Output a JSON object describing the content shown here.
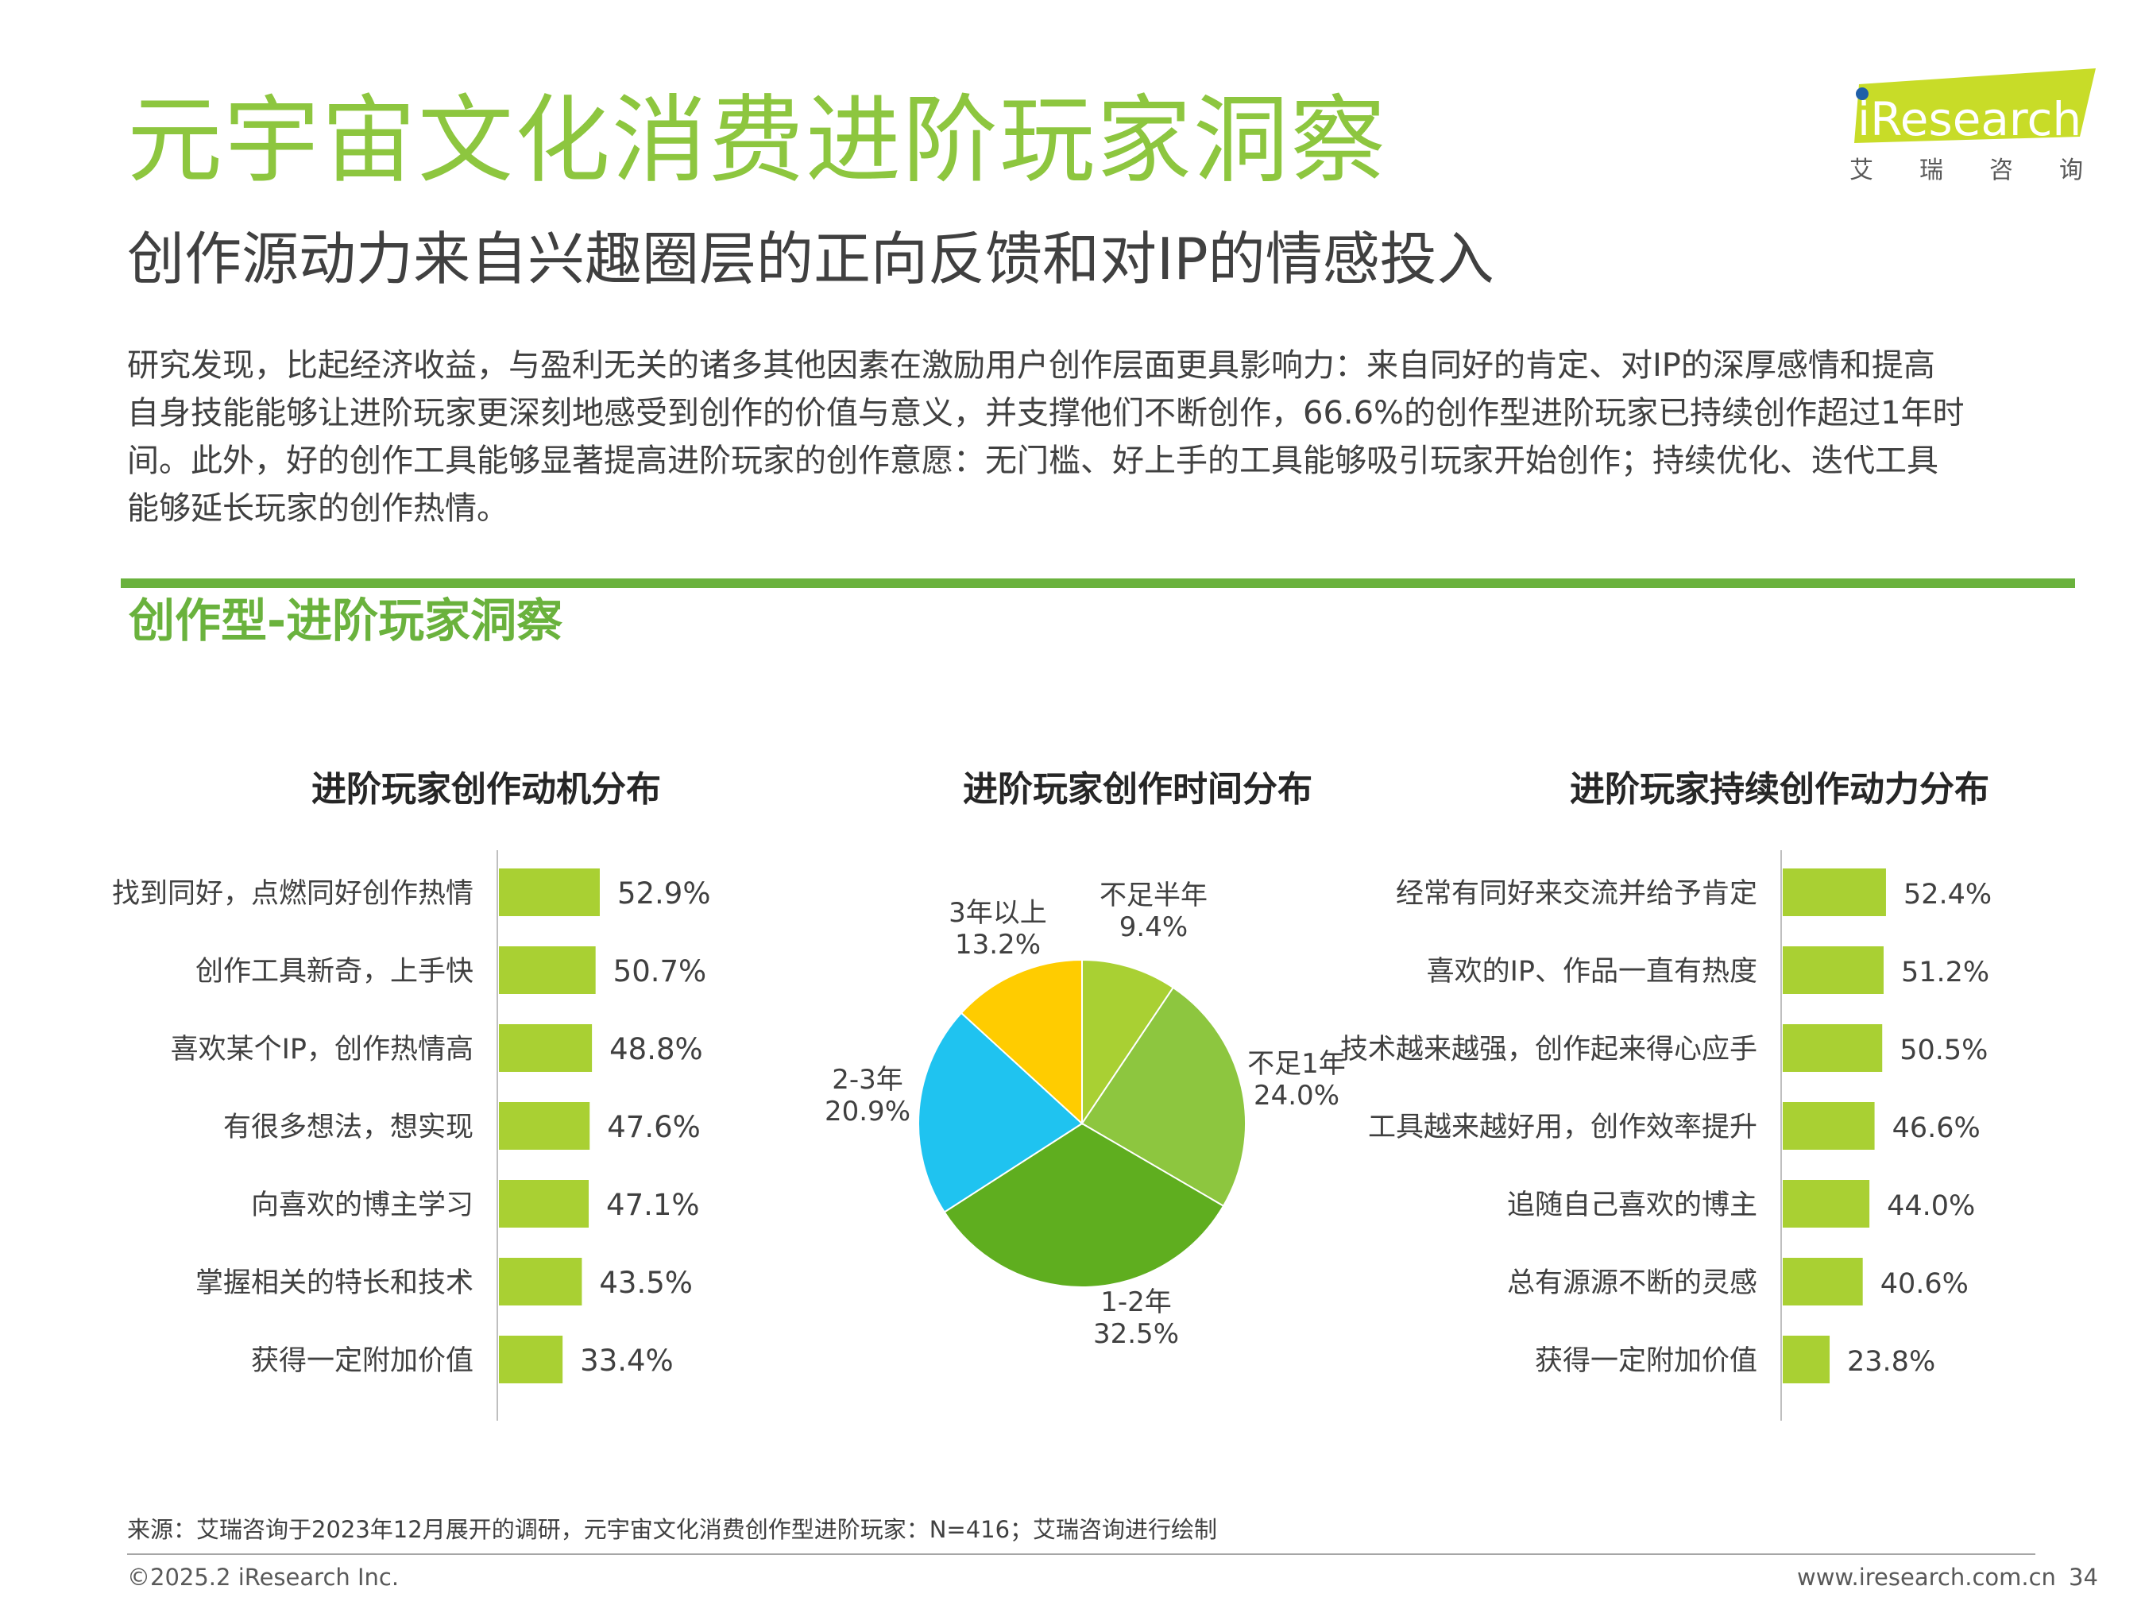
{
  "header": {
    "title": "元宇宙文化消费进阶玩家洞察",
    "subtitle": "创作源动力来自兴趣圈层的正向反馈和对IP的情感投入"
  },
  "logo": {
    "wordmark": "iResearch",
    "cn_chars": [
      "艾",
      "瑞",
      "咨",
      "询"
    ],
    "brand_color": "#c8dc28",
    "dot_color": "#1f5fa8"
  },
  "intro": {
    "lines": [
      "研究发现，比起经济收益，与盈利无关的诸多其他因素在激励用户创作层面更具影响力：来自同好的肯定、对IP的深厚感情和提高",
      "自身技能能够让进阶玩家更深刻地感受到创作的价值与意义，并支撑他们不断创作，66.6%的创作型进阶玩家已持续创作超过1年时",
      "间。此外，好的创作工具能够显著提高进阶玩家的创作意愿：无门槛、好上手的工具能够吸引玩家开始创作；持续优化、迭代工具",
      "能够延长玩家的创作热情。"
    ]
  },
  "section": {
    "title": "创作型-进阶玩家洞察",
    "accent_color": "#6ab23d"
  },
  "chart_data": [
    {
      "type": "bar",
      "orientation": "horizontal",
      "title": "进阶玩家创作动机分布",
      "categories": [
        "找到同好，点燃同好创作热情",
        "创作工具新奇，上手快",
        "喜欢某个IP，创作热情高",
        "有很多想法，想实现",
        "向喜欢的博主学习",
        "掌握相关的特长和技术",
        "获得一定附加价值"
      ],
      "values": [
        52.9,
        50.7,
        48.8,
        47.6,
        47.1,
        43.5,
        33.4
      ],
      "value_labels": [
        "52.9%",
        "50.7%",
        "48.8%",
        "47.6%",
        "47.1%",
        "43.5%",
        "33.4%"
      ],
      "unit": "%",
      "xlim": [
        0,
        100
      ],
      "color": "#a9d033"
    },
    {
      "type": "pie",
      "title": "进阶玩家创作时间分布",
      "categories": [
        "不足半年",
        "不足1年",
        "1-2年",
        "2-3年",
        "3年以上"
      ],
      "values": [
        9.4,
        24.0,
        32.5,
        20.9,
        13.2
      ],
      "value_labels": [
        "9.4%",
        "24.0%",
        "32.5%",
        "20.9%",
        "13.2%"
      ],
      "unit": "%",
      "colors": [
        "#a9d033",
        "#8dc63f",
        "#5fae1f",
        "#1fc3f0",
        "#ffcc00"
      ]
    },
    {
      "type": "bar",
      "orientation": "horizontal",
      "title": "进阶玩家持续创作动力分布",
      "categories": [
        "经常有同好来交流并给予肯定",
        "喜欢的IP、作品一直有热度",
        "技术越来越强，创作起来得心应手",
        "工具越来越好用，创作效率提升",
        "追随自己喜欢的博主",
        "总有源源不断的灵感",
        "获得一定附加价值"
      ],
      "values": [
        52.4,
        51.2,
        50.5,
        46.6,
        44.0,
        40.6,
        23.8
      ],
      "value_labels": [
        "52.4%",
        "51.2%",
        "50.5%",
        "46.6%",
        "44.0%",
        "40.6%",
        "23.8%"
      ],
      "unit": "%",
      "xlim": [
        0,
        100
      ],
      "color": "#a9d033"
    }
  ],
  "footer": {
    "source": "来源：艾瑞咨询于2023年12月展开的调研，元宇宙文化消费创作型进阶玩家：N=416；艾瑞咨询进行绘制",
    "copyright": "©2025.2 iResearch Inc.",
    "website": "www.iresearch.com.cn",
    "page_number": "34"
  }
}
